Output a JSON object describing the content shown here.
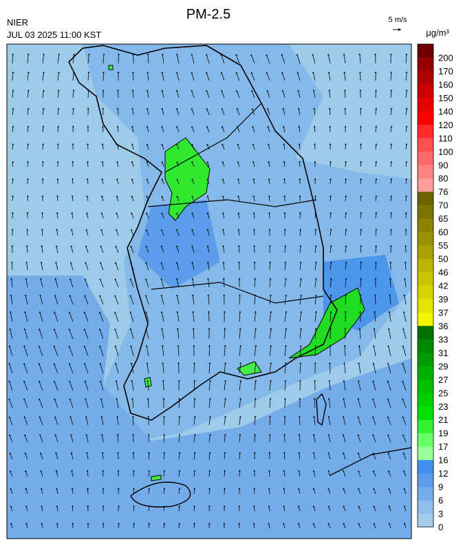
{
  "header": {
    "title": "PM-2.5",
    "agency": "NIER",
    "datetime": "JUL 03 2025 11:00 KST",
    "vector_scale": "5 m/s",
    "unit": "μg/m³"
  },
  "colorbar": {
    "levels": [
      0,
      3,
      6,
      9,
      12,
      16,
      17,
      19,
      21,
      23,
      25,
      27,
      29,
      31,
      33,
      36,
      37,
      39,
      42,
      46,
      50,
      55,
      60,
      65,
      70,
      76,
      80,
      90,
      100,
      110,
      120,
      140,
      150,
      160,
      170,
      200
    ],
    "colors": [
      "#a3cde8",
      "#8dbfea",
      "#72aceb",
      "#5c9deb",
      "#3f8ef0",
      "#99ff99",
      "#66ff66",
      "#33f033",
      "#00e000",
      "#00d000",
      "#00c000",
      "#00b000",
      "#009c00",
      "#008800",
      "#007000",
      "#f5f500",
      "#e4e400",
      "#d6d400",
      "#c8c400",
      "#b8b400",
      "#a8a200",
      "#999200",
      "#8b8400",
      "#7c7400",
      "#6c6200",
      "#ff9c9c",
      "#ff8282",
      "#ff6868",
      "#ff4e4e",
      "#ff2a2a",
      "#ff0000",
      "#e40000",
      "#cc0000",
      "#b20000",
      "#960000",
      "#700000"
    ]
  }
}
